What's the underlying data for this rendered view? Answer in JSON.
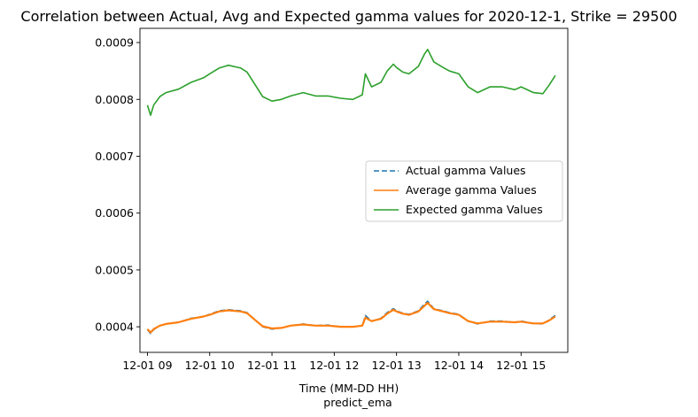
{
  "chart_data": {
    "type": "line",
    "title": "Correlation between Actual, Avg and Expected gamma values for 2020-12-1, Strike = 29500",
    "xlabel": "Time (MM-DD HH)",
    "xlabel2": "predict_ema",
    "ylabel": "",
    "x_ticks": [
      "12-01 09",
      "12-01 10",
      "12-01 11",
      "12-01 12",
      "12-01 13",
      "12-01 14",
      "12-01 15"
    ],
    "x_tick_hours": [
      9,
      10,
      11,
      12,
      13,
      14,
      15
    ],
    "xlim": [
      8.88,
      15.75
    ],
    "y_ticks": [
      "0.0004",
      "0.0005",
      "0.0006",
      "0.0007",
      "0.0008",
      "0.0009"
    ],
    "y_tick_values": [
      0.0004,
      0.0005,
      0.0006,
      0.0007,
      0.0008,
      0.0009
    ],
    "ylim": [
      0.000355,
      0.000925
    ],
    "grid": false,
    "legend_position": "center-right",
    "series": [
      {
        "name": "Actual gamma Values",
        "color": "#1f77b4",
        "dash": "dashed",
        "x": [
          9.0,
          9.05,
          9.1,
          9.2,
          9.3,
          9.5,
          9.7,
          9.9,
          10.0,
          10.15,
          10.3,
          10.5,
          10.6,
          10.75,
          10.85,
          11.0,
          11.15,
          11.3,
          11.5,
          11.7,
          11.9,
          12.1,
          12.3,
          12.45,
          12.5,
          12.6,
          12.75,
          12.85,
          12.95,
          13.0,
          13.1,
          13.2,
          13.35,
          13.45,
          13.5,
          13.6,
          13.75,
          13.85,
          14.0,
          14.15,
          14.3,
          14.5,
          14.7,
          14.9,
          15.0,
          15.2,
          15.35,
          15.45,
          15.55
        ],
        "y": [
          0.000395,
          0.000388,
          0.000395,
          0.000402,
          0.000405,
          0.000408,
          0.000415,
          0.000418,
          0.000422,
          0.000428,
          0.00043,
          0.000428,
          0.000425,
          0.00041,
          0.0004,
          0.000396,
          0.000398,
          0.000402,
          0.000405,
          0.000402,
          0.000403,
          0.0004,
          0.0004,
          0.000402,
          0.00042,
          0.00041,
          0.000415,
          0.000425,
          0.000432,
          0.000428,
          0.000424,
          0.000422,
          0.000428,
          0.00044,
          0.000445,
          0.000432,
          0.000428,
          0.000425,
          0.000422,
          0.00041,
          0.000405,
          0.00041,
          0.00041,
          0.000408,
          0.00041,
          0.000406,
          0.000405,
          0.000412,
          0.00042
        ]
      },
      {
        "name": "Average gamma Values",
        "color": "#ff7f0e",
        "dash": "solid",
        "x": [
          9.0,
          9.05,
          9.1,
          9.2,
          9.3,
          9.5,
          9.7,
          9.9,
          10.0,
          10.15,
          10.3,
          10.5,
          10.6,
          10.75,
          10.85,
          11.0,
          11.15,
          11.3,
          11.5,
          11.7,
          11.9,
          12.1,
          12.3,
          12.45,
          12.5,
          12.6,
          12.75,
          12.85,
          12.95,
          13.0,
          13.1,
          13.2,
          13.35,
          13.45,
          13.5,
          13.6,
          13.75,
          13.85,
          14.0,
          14.15,
          14.3,
          14.5,
          14.7,
          14.9,
          15.0,
          15.2,
          15.35,
          15.45,
          15.55
        ],
        "y": [
          0.000396,
          0.00039,
          0.000396,
          0.000402,
          0.000405,
          0.000408,
          0.000414,
          0.000418,
          0.000421,
          0.000427,
          0.000429,
          0.000427,
          0.000424,
          0.00041,
          0.000401,
          0.000397,
          0.000398,
          0.000402,
          0.000404,
          0.000402,
          0.000402,
          0.0004,
          0.0004,
          0.000402,
          0.000416,
          0.00041,
          0.000414,
          0.000423,
          0.00043,
          0.000427,
          0.000423,
          0.000421,
          0.000427,
          0.000437,
          0.000442,
          0.000431,
          0.000427,
          0.000424,
          0.000421,
          0.00041,
          0.000406,
          0.000409,
          0.000409,
          0.000408,
          0.000409,
          0.000406,
          0.000406,
          0.000411,
          0.000418
        ]
      },
      {
        "name": "Expected gamma Values",
        "color": "#2ca02c",
        "dash": "solid",
        "x": [
          9.0,
          9.05,
          9.1,
          9.2,
          9.3,
          9.5,
          9.7,
          9.9,
          10.0,
          10.15,
          10.3,
          10.5,
          10.6,
          10.75,
          10.85,
          11.0,
          11.15,
          11.3,
          11.5,
          11.7,
          11.9,
          12.1,
          12.3,
          12.45,
          12.5,
          12.6,
          12.75,
          12.85,
          12.95,
          13.0,
          13.1,
          13.2,
          13.35,
          13.45,
          13.5,
          13.6,
          13.75,
          13.85,
          14.0,
          14.15,
          14.3,
          14.5,
          14.7,
          14.9,
          15.0,
          15.2,
          15.35,
          15.45,
          15.55
        ],
        "y": [
          0.00079,
          0.000772,
          0.00079,
          0.000805,
          0.000812,
          0.000818,
          0.00083,
          0.000838,
          0.000845,
          0.000855,
          0.00086,
          0.000855,
          0.000848,
          0.000822,
          0.000805,
          0.000797,
          0.0008,
          0.000806,
          0.000812,
          0.000806,
          0.000806,
          0.000802,
          0.0008,
          0.000808,
          0.000845,
          0.000822,
          0.00083,
          0.00085,
          0.000862,
          0.000856,
          0.000848,
          0.000845,
          0.000858,
          0.00088,
          0.000888,
          0.000866,
          0.000856,
          0.00085,
          0.000845,
          0.000822,
          0.000812,
          0.000822,
          0.000822,
          0.000817,
          0.000822,
          0.000812,
          0.00081,
          0.000825,
          0.000842
        ]
      }
    ]
  }
}
